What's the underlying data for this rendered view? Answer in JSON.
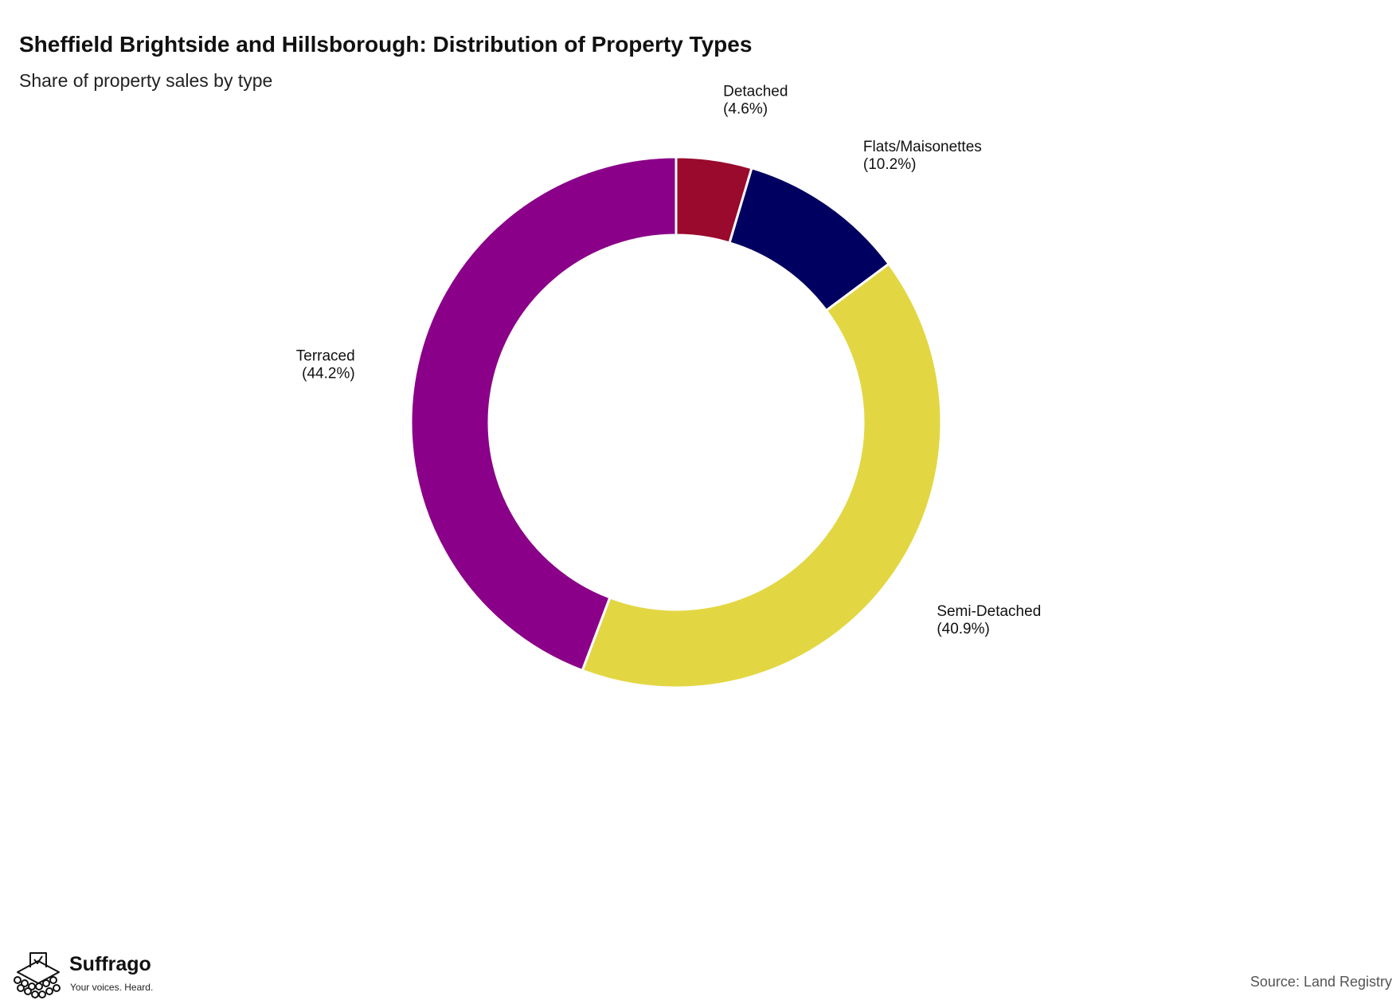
{
  "chart_data": {
    "type": "pie",
    "style": "donut",
    "title": "Sheffield Brightside and Hillsborough: Distribution of Property Types",
    "subtitle": "Share of property sales by type",
    "unit": "%",
    "slices": [
      {
        "label": "Detached",
        "value": 4.6,
        "display": "(4.6%)",
        "color": "#990a2c"
      },
      {
        "label": "Flats/Maisonettes",
        "value": 10.2,
        "display": "(10.2%)",
        "color": "#000060"
      },
      {
        "label": "Semi-Detached",
        "value": 40.9,
        "display": "(40.9%)",
        "color": "#e2d743"
      },
      {
        "label": "Terraced",
        "value": 44.2,
        "display": "(44.2%)",
        "color": "#8a0088"
      }
    ],
    "start_angle": "12 o'clock",
    "direction": "clockwise",
    "legend": "none",
    "labels": "outside"
  },
  "branding": {
    "name": "Suffrago",
    "tagline": "Your voices. Heard."
  },
  "source": "Source: Land Registry"
}
